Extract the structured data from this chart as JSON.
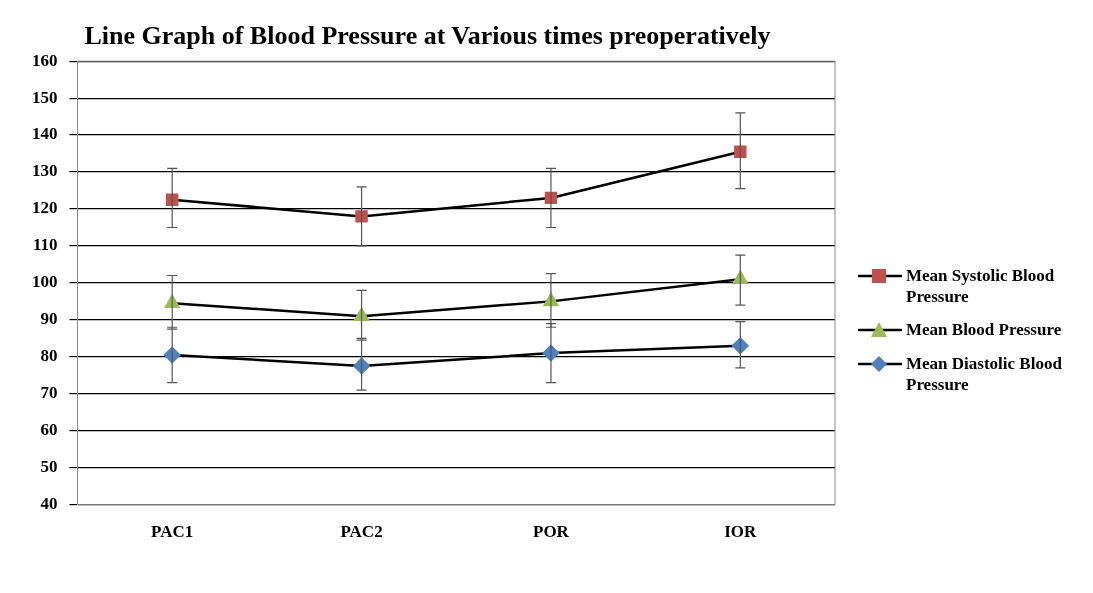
{
  "chart_data": {
    "type": "line",
    "title": "Line Graph of Blood Pressure at Various times preoperatively",
    "categories": [
      "PAC1",
      "PAC2",
      "POR",
      "IOR"
    ],
    "ylim": [
      40,
      160
    ],
    "yticks": [
      40,
      50,
      60,
      70,
      80,
      90,
      100,
      110,
      120,
      130,
      140,
      150,
      160
    ],
    "grid": "y",
    "legend": "right",
    "series": [
      {
        "name": "Mean Systolic Blood Pressure",
        "color": "#c0504d",
        "marker": "square",
        "values": [
          122.5,
          118,
          123,
          135.5
        ],
        "errors": [
          [
            115,
            131
          ],
          [
            110,
            126
          ],
          [
            115,
            131
          ],
          [
            125.5,
            146
          ]
        ]
      },
      {
        "name": "Mean Blood Pressure",
        "color": "#9bbb59",
        "marker": "triangle",
        "values": [
          94.5,
          91,
          95,
          101
        ],
        "errors": [
          [
            87.5,
            102
          ],
          [
            84.5,
            98
          ],
          [
            88,
            102.5
          ],
          [
            94,
            107.5
          ]
        ]
      },
      {
        "name": "Mean Diastolic Blood Pressure",
        "color": "#4f81bd",
        "marker": "diamond",
        "values": [
          80.5,
          77.5,
          81,
          83
        ],
        "errors": [
          [
            73,
            88
          ],
          [
            71,
            85
          ],
          [
            73,
            89
          ],
          [
            77,
            89.5
          ]
        ]
      }
    ]
  }
}
